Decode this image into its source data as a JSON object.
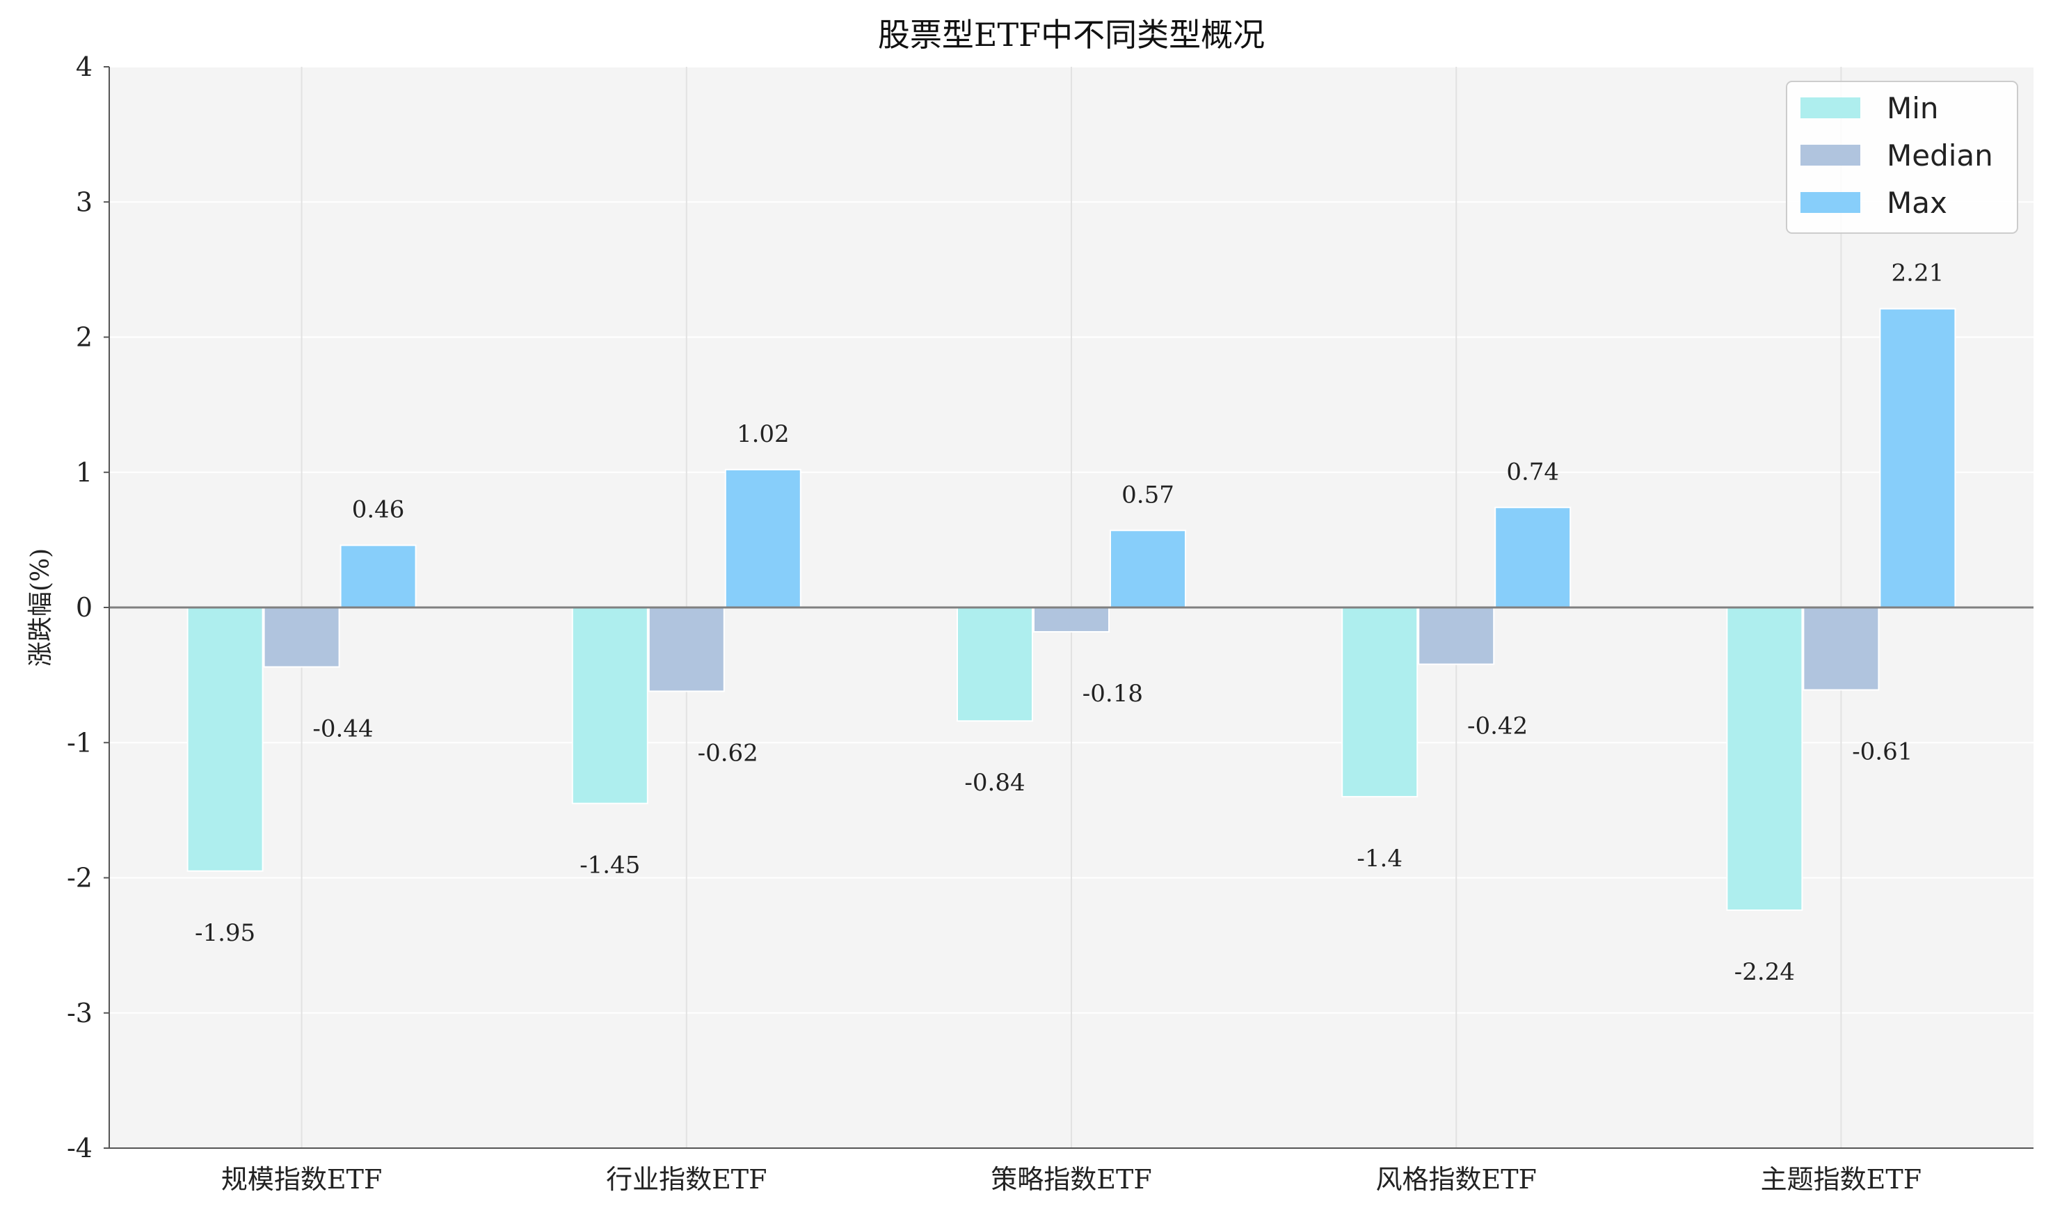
{
  "chart_data": {
    "type": "bar",
    "title": "股票型ETF中不同类型概况",
    "xlabel": "",
    "ylabel": "涨跌幅(%)",
    "ylim": [
      -4,
      4
    ],
    "yticks": [
      "4",
      "3",
      "2",
      "1",
      "0",
      "-1",
      "-2",
      "-3",
      "-4"
    ],
    "categories": [
      "规模指数ETF",
      "行业指数ETF",
      "策略指数ETF",
      "风格指数ETF",
      "主题指数ETF"
    ],
    "series": [
      {
        "name": "Min",
        "color": "#aeeeee",
        "values": [
          -1.95,
          -1.45,
          -0.84,
          -1.4,
          -2.24
        ],
        "labels": [
          "-1.95",
          "-1.45",
          "-0.84",
          "-1.4",
          "-2.24"
        ]
      },
      {
        "name": "Median",
        "color": "#b0c4de",
        "values": [
          -0.44,
          -0.62,
          -0.18,
          -0.42,
          -0.61
        ],
        "labels": [
          "-0.44",
          "-0.62",
          "-0.18",
          "-0.42",
          "-0.61"
        ]
      },
      {
        "name": "Max",
        "color": "#87cefa",
        "values": [
          0.46,
          1.02,
          0.57,
          0.74,
          2.21
        ],
        "labels": [
          "0.46",
          "1.02",
          "0.57",
          "0.74",
          "2.21"
        ]
      }
    ],
    "legend_position": "top-right",
    "grid": true,
    "background": "#f4f4f4"
  }
}
